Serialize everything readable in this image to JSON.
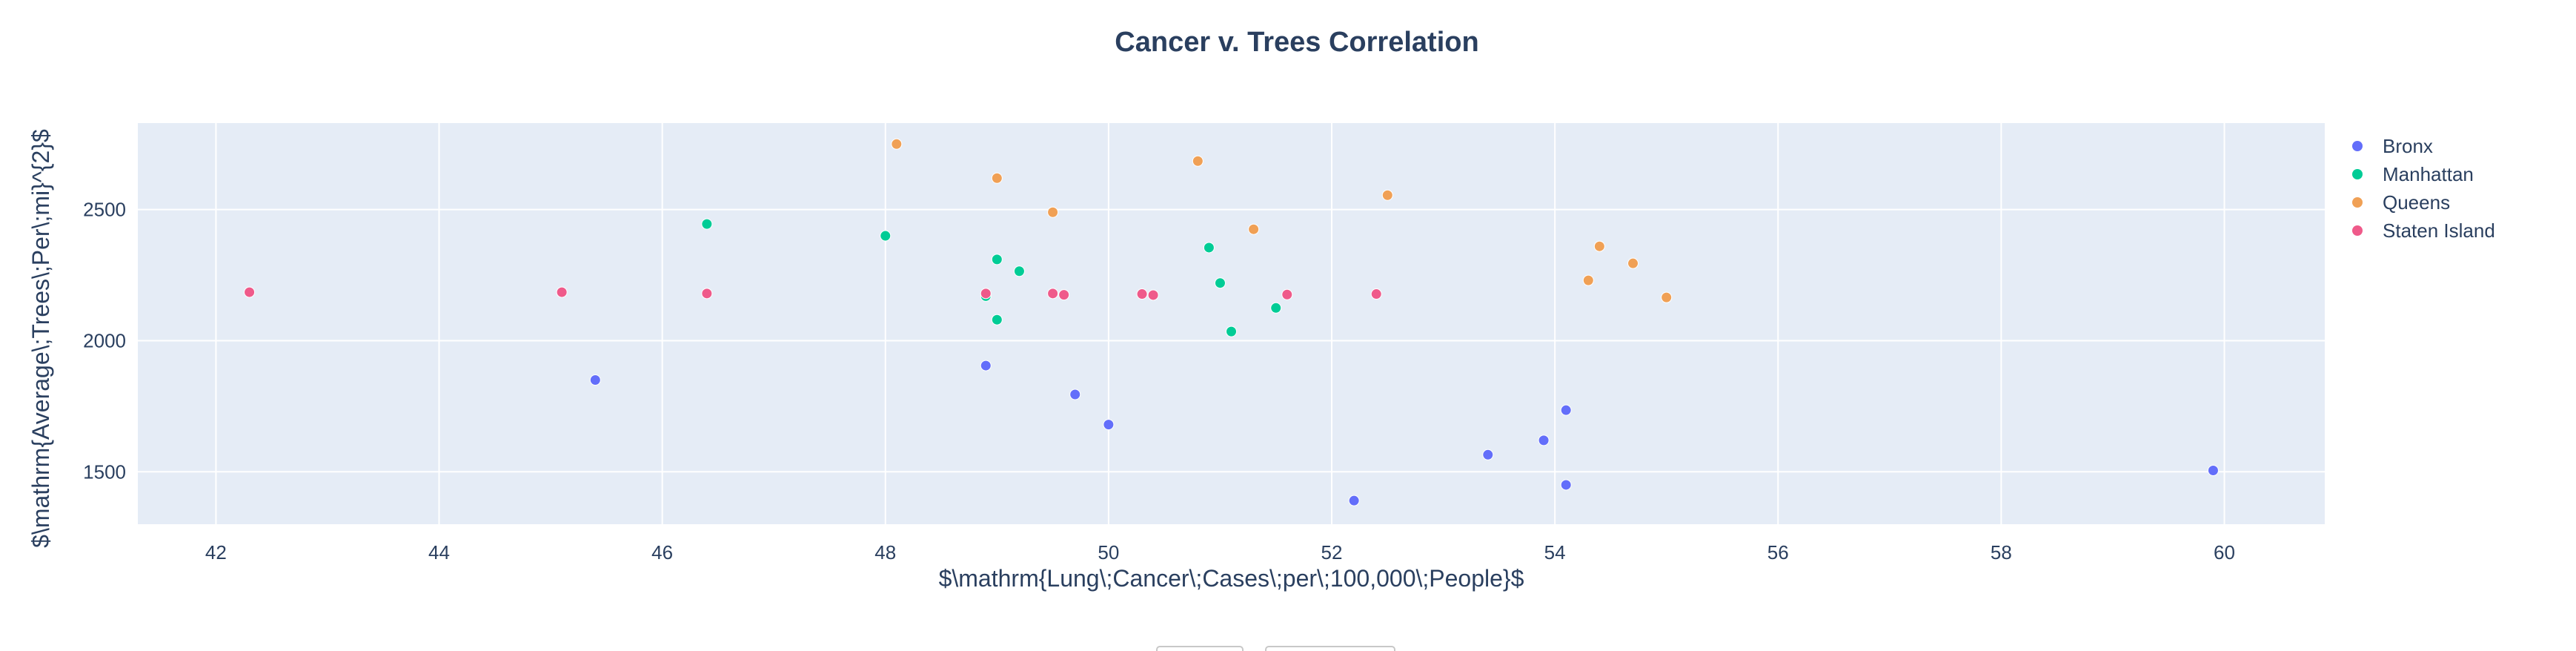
{
  "chart_data": {
    "type": "scatter",
    "title": "Cancer v. Trees Correlation",
    "xlabel": "$\\mathrm{Lung\\;Cancer\\;Cases\\;per\\;100,000\\;People}$",
    "ylabel": "$\\mathrm{Average\\;Trees\\;Per\\;mi}^{2}$",
    "xlim": [
      41.3,
      60.9
    ],
    "ylim": [
      1300,
      2830
    ],
    "x_ticks": [
      42,
      44,
      46,
      48,
      50,
      52,
      54,
      56,
      58,
      60
    ],
    "y_ticks": [
      1500,
      2000,
      2500
    ],
    "grid": true,
    "legend_position": "right",
    "series": [
      {
        "name": "Bronx",
        "color": "#636efa",
        "points": [
          [
            45.4,
            1850
          ],
          [
            48.9,
            1905
          ],
          [
            49.7,
            1795
          ],
          [
            50.0,
            1680
          ],
          [
            52.2,
            1390
          ],
          [
            53.4,
            1565
          ],
          [
            53.9,
            1620
          ],
          [
            54.1,
            1735
          ],
          [
            54.1,
            1450
          ],
          [
            59.9,
            1505
          ]
        ]
      },
      {
        "name": "Manhattan",
        "color": "#00cc96",
        "points": [
          [
            46.4,
            2445
          ],
          [
            48.0,
            2400
          ],
          [
            48.9,
            2170
          ],
          [
            49.0,
            2080
          ],
          [
            49.0,
            2310
          ],
          [
            49.2,
            2265
          ],
          [
            50.9,
            2355
          ],
          [
            51.0,
            2220
          ],
          [
            51.1,
            2035
          ],
          [
            51.5,
            2125
          ]
        ]
      },
      {
        "name": "Queens",
        "color": "#f0a055",
        "points": [
          [
            48.1,
            2750
          ],
          [
            49.0,
            2620
          ],
          [
            49.5,
            2490
          ],
          [
            50.8,
            2685
          ],
          [
            51.3,
            2425
          ],
          [
            52.5,
            2555
          ],
          [
            54.3,
            2230
          ],
          [
            54.4,
            2360
          ],
          [
            54.7,
            2295
          ],
          [
            55.0,
            2165
          ]
        ]
      },
      {
        "name": "Staten Island",
        "color": "#ef5a8a",
        "points": [
          [
            42.3,
            2185
          ],
          [
            45.1,
            2185
          ],
          [
            46.4,
            2180
          ],
          [
            48.9,
            2180
          ],
          [
            49.5,
            2180
          ],
          [
            49.6,
            2175
          ],
          [
            50.3,
            2178
          ],
          [
            50.4,
            2174
          ],
          [
            51.6,
            2176
          ],
          [
            52.4,
            2178
          ]
        ]
      }
    ]
  }
}
